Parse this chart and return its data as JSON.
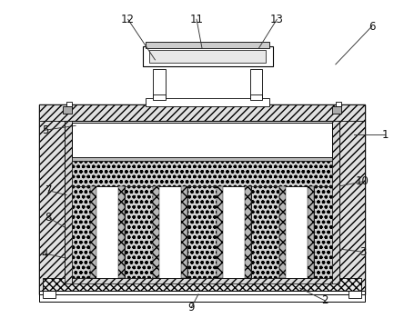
{
  "bg_color": "#ffffff",
  "lc": "#000000",
  "figsize": [
    4.44,
    3.5
  ],
  "dpi": 100,
  "labels": [
    [
      "1",
      425,
      148,
      390,
      148
    ],
    [
      "2",
      358,
      332,
      330,
      318
    ],
    [
      "3",
      400,
      278,
      375,
      275
    ],
    [
      "4",
      48,
      280,
      72,
      285
    ],
    [
      "5",
      48,
      143,
      82,
      138
    ],
    [
      "6",
      410,
      28,
      370,
      70
    ],
    [
      "7",
      52,
      210,
      72,
      215
    ],
    [
      "8",
      52,
      240,
      72,
      252
    ],
    [
      "9",
      210,
      340,
      218,
      325
    ],
    [
      "10",
      400,
      200,
      375,
      205
    ],
    [
      "11",
      216,
      20,
      222,
      52
    ],
    [
      "12",
      140,
      20,
      170,
      65
    ],
    [
      "13",
      305,
      20,
      285,
      52
    ]
  ]
}
